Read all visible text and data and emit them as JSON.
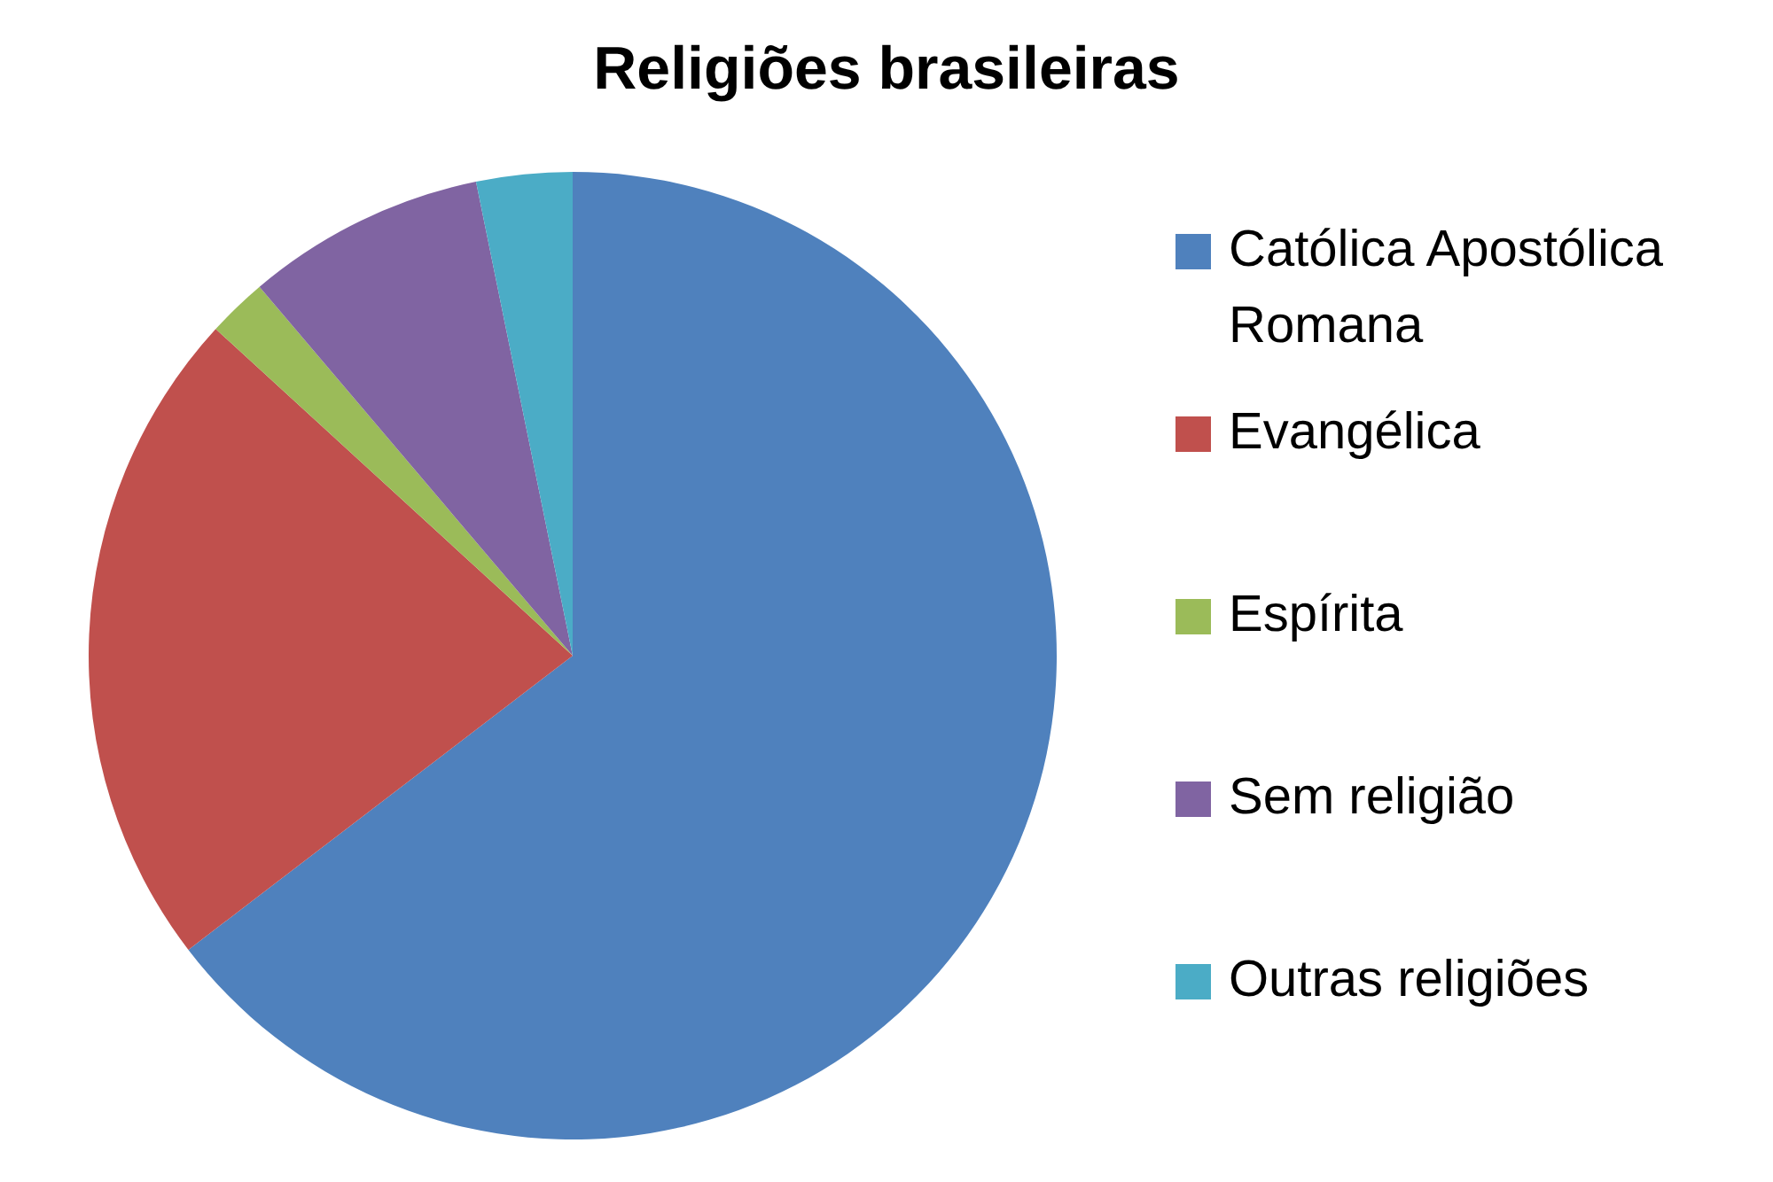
{
  "chart_data": {
    "type": "pie",
    "title": "Religiões brasileiras",
    "categories": [
      "Católica Apostólica Romana",
      "Evangélica",
      "Espírita",
      "Sem religião",
      "Outras religiões"
    ],
    "values": [
      64.6,
      22.2,
      2.0,
      8.0,
      3.2
    ],
    "colors": [
      "#4f81bd",
      "#c0504d",
      "#9bbb59",
      "#8064a2",
      "#4bacc6"
    ],
    "legend": "right"
  }
}
